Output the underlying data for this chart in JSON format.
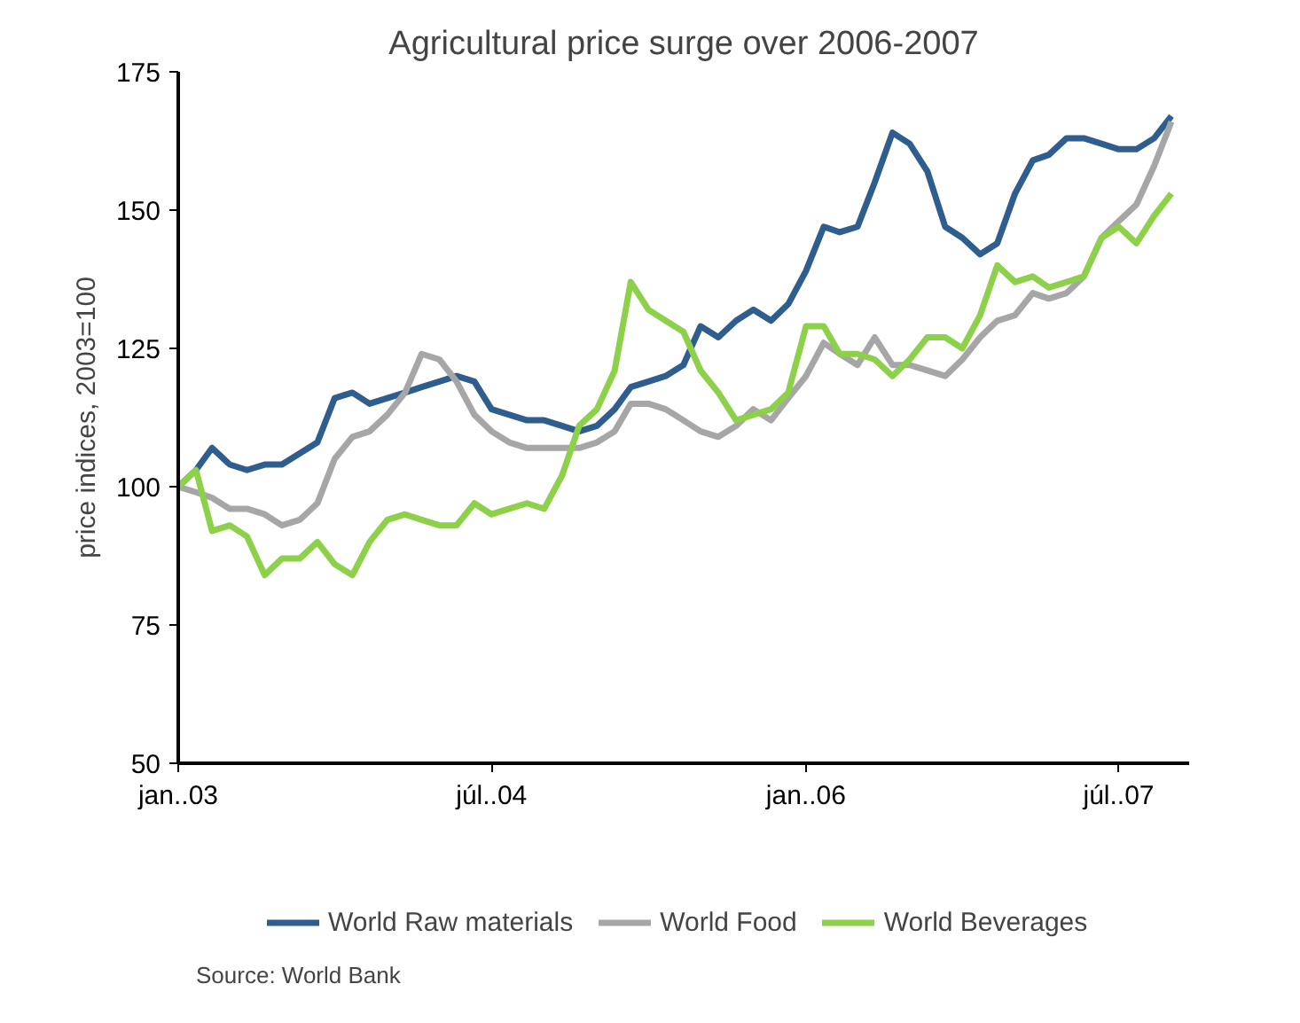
{
  "chart_data": {
    "type": "line",
    "title": "Agricultural price surge over 2006-2007",
    "ylabel": "price indices, 2003=100",
    "x": [
      "2003-01",
      "2003-02",
      "2003-03",
      "2003-04",
      "2003-05",
      "2003-06",
      "2003-07",
      "2003-08",
      "2003-09",
      "2003-10",
      "2003-11",
      "2003-12",
      "2004-01",
      "2004-02",
      "2004-03",
      "2004-04",
      "2004-05",
      "2004-06",
      "2004-07",
      "2004-08",
      "2004-09",
      "2004-10",
      "2004-11",
      "2004-12",
      "2005-01",
      "2005-02",
      "2005-03",
      "2005-04",
      "2005-05",
      "2005-06",
      "2005-07",
      "2005-08",
      "2005-09",
      "2005-10",
      "2005-11",
      "2005-12",
      "2006-01",
      "2006-02",
      "2006-03",
      "2006-04",
      "2006-05",
      "2006-06",
      "2006-07",
      "2006-08",
      "2006-09",
      "2006-10",
      "2006-11",
      "2006-12",
      "2007-01",
      "2007-02",
      "2007-03",
      "2007-04",
      "2007-05",
      "2007-06",
      "2007-07",
      "2007-08",
      "2007-09",
      "2007-10"
    ],
    "series": [
      {
        "name": "World Raw materials",
        "color": "#2e5d8e",
        "values": [
          100,
          103,
          107,
          104,
          103,
          104,
          104,
          106,
          108,
          116,
          117,
          115,
          116,
          117,
          118,
          119,
          120,
          119,
          114,
          113,
          112,
          112,
          111,
          110,
          111,
          114,
          118,
          119,
          120,
          122,
          129,
          127,
          130,
          132,
          130,
          133,
          139,
          147,
          146,
          147,
          155,
          164,
          162,
          157,
          147,
          145,
          142,
          144,
          153,
          159,
          160,
          163,
          163,
          162,
          161,
          161,
          163,
          167
        ]
      },
      {
        "name": "World Food",
        "color": "#a6a6a6",
        "values": [
          100,
          99,
          98,
          96,
          96,
          95,
          93,
          94,
          97,
          105,
          109,
          110,
          113,
          117,
          124,
          123,
          119,
          113,
          110,
          108,
          107,
          107,
          107,
          107,
          108,
          110,
          115,
          115,
          114,
          112,
          110,
          109,
          111,
          114,
          112,
          116,
          120,
          126,
          124,
          122,
          127,
          122,
          122,
          121,
          120,
          123,
          127,
          130,
          131,
          135,
          134,
          135,
          138,
          145,
          148,
          151,
          158,
          166
        ]
      },
      {
        "name": "World Beverages",
        "color": "#8dd04a",
        "values": [
          100,
          103,
          92,
          93,
          91,
          84,
          87,
          87,
          90,
          86,
          84,
          90,
          94,
          95,
          94,
          93,
          93,
          97,
          95,
          96,
          97,
          96,
          102,
          111,
          114,
          121,
          137,
          132,
          130,
          128,
          121,
          117,
          112,
          113,
          114,
          117,
          129,
          129,
          124,
          124,
          123,
          120,
          123,
          127,
          127,
          125,
          131,
          140,
          137,
          138,
          136,
          137,
          138,
          145,
          147,
          144,
          149,
          153
        ]
      }
    ],
    "xlim": [
      "2003-01",
      "2007-11"
    ],
    "xticks": [
      {
        "value": "2003-01",
        "label": "jan..03"
      },
      {
        "value": "2004-07",
        "label": "júl..04"
      },
      {
        "value": "2006-01",
        "label": "jan..06"
      },
      {
        "value": "2007-07",
        "label": "júl..07"
      }
    ],
    "ylim": [
      50,
      175
    ],
    "yticks": [
      50,
      75,
      100,
      125,
      150,
      175
    ],
    "grid": false,
    "legend": "bottom",
    "marker": "none",
    "line_style": "solid",
    "annotations": [
      "Source: World Bank"
    ]
  }
}
